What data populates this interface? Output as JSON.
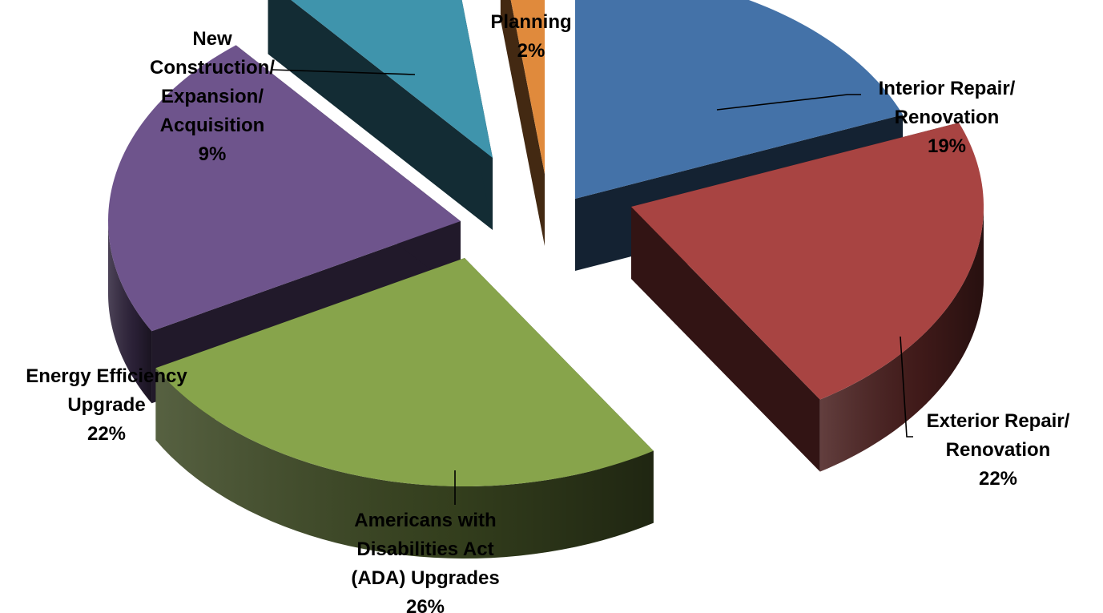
{
  "chart_data": {
    "type": "pie",
    "title": "",
    "style": "3d-exploded",
    "slices": [
      {
        "label_lines": [
          "Interior Repair/",
          "Renovation"
        ],
        "pct_label": "19%",
        "value": 19,
        "color": "#4472A8"
      },
      {
        "label_lines": [
          "Exterior Repair/",
          "Renovation"
        ],
        "pct_label": "22%",
        "value": 22,
        "color": "#A84442"
      },
      {
        "label_lines": [
          "Americans with",
          "Disabilities Act",
          "(ADA) Upgrades"
        ],
        "pct_label": "26%",
        "value": 26,
        "color": "#87A44B"
      },
      {
        "label_lines": [
          "Energy Efficiency",
          "Upgrade"
        ],
        "pct_label": "22%",
        "value": 22,
        "color": "#6E548C"
      },
      {
        "label_lines": [
          "New",
          "Construction/",
          "Expansion/",
          "Acquisition"
        ],
        "pct_label": "9%",
        "value": 9,
        "color": "#3F94AC"
      },
      {
        "label_lines": [
          "Planning"
        ],
        "pct_label": "2%",
        "value": 2,
        "color": "#E08A3C"
      }
    ]
  }
}
